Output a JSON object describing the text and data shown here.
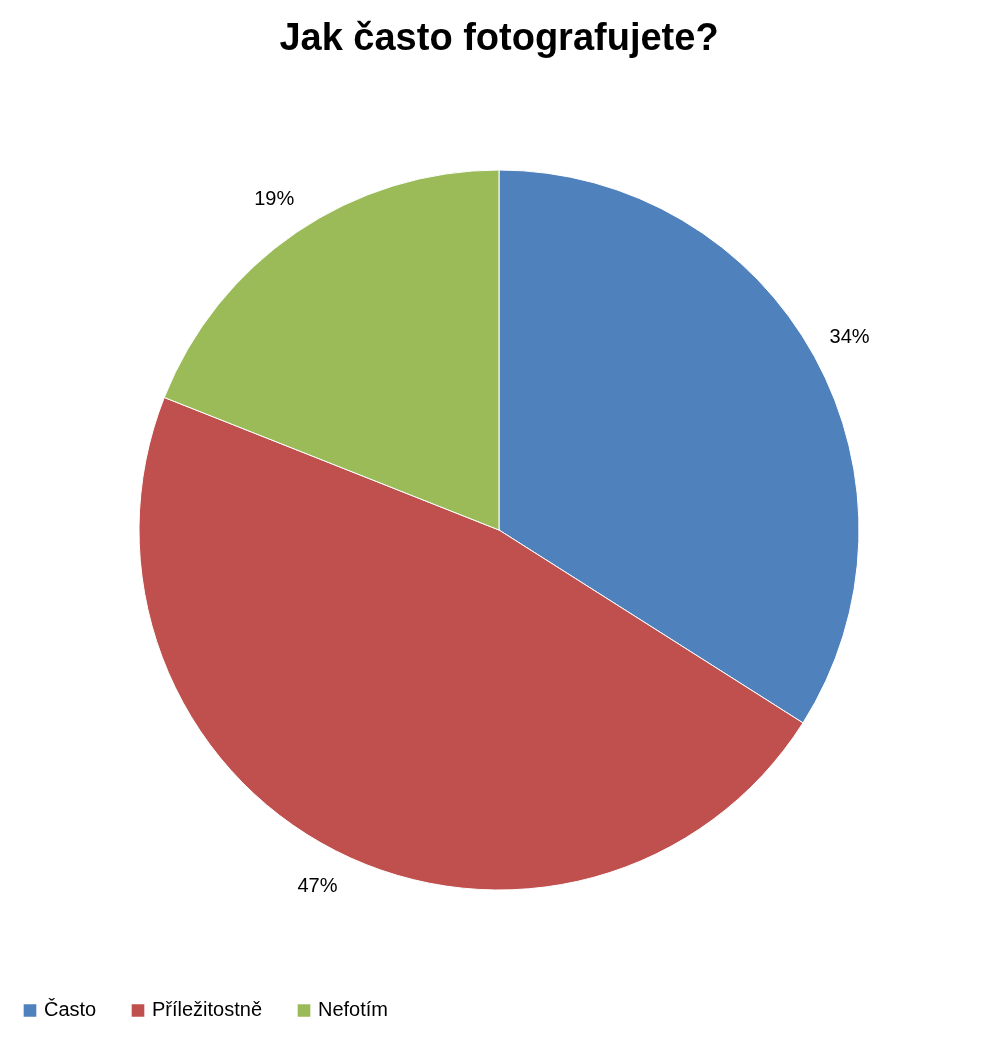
{
  "chart_data": {
    "type": "pie",
    "title": "Jak často fotografujete?",
    "categories": [
      "Často",
      "Příležitostně",
      "Nefotím"
    ],
    "values": [
      34,
      47,
      19
    ],
    "value_labels": [
      "34%",
      "47%",
      "19%"
    ],
    "colors": [
      "#4f81bd",
      "#c0504d",
      "#9bbb59"
    ],
    "legend": "bottom"
  }
}
